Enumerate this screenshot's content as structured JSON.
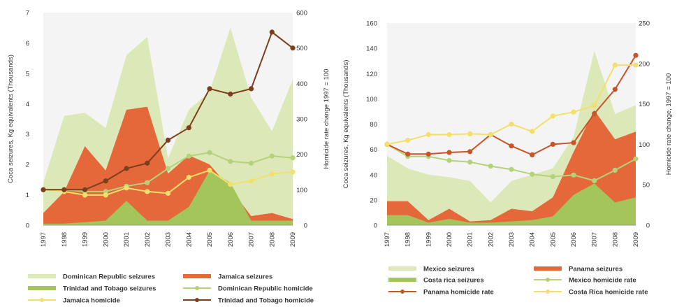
{
  "chart_data": [
    {
      "type": "area",
      "x": [
        "1997",
        "1998",
        "1999",
        "2000",
        "2001",
        "2002",
        "2003",
        "2004",
        "2005",
        "2006",
        "2007",
        "2008",
        "2009"
      ],
      "ylabel": "Coca seizures, Kg equivalents (Thousands)",
      "y2label": "Homicide rate change 1997 = 100",
      "ylim": [
        0,
        7
      ],
      "y2lim": [
        0,
        600
      ],
      "yticks": [
        0,
        1,
        2,
        3,
        4,
        5,
        6,
        7
      ],
      "y2ticks": [
        0,
        100,
        200,
        300,
        400,
        500,
        600
      ],
      "series": [
        {
          "name": "Dominican Republic seizures",
          "kind": "area",
          "axis": "left",
          "color": "#dde8b8",
          "values": [
            1.4,
            3.6,
            3.7,
            3.2,
            5.6,
            6.2,
            2.2,
            3.8,
            4.4,
            6.5,
            4.2,
            3.1,
            4.8
          ]
        },
        {
          "name": "Jamaica seizures",
          "kind": "area",
          "axis": "left",
          "color": "#e5683a",
          "values": [
            0.4,
            1.1,
            2.6,
            1.8,
            3.8,
            3.9,
            1.7,
            2.3,
            2.0,
            1.2,
            0.3,
            0.4,
            0.2
          ]
        },
        {
          "name": "Trinidad and Tobago seizures",
          "kind": "area",
          "axis": "left",
          "color": "#a4c45c",
          "values": [
            0.05,
            0.05,
            0.1,
            0.15,
            0.8,
            0.15,
            0.15,
            0.6,
            1.8,
            1.4,
            0.15,
            0.15,
            0.15
          ]
        },
        {
          "name": "Dominican Republic homicide",
          "kind": "line",
          "axis": "right",
          "color": "#b5d27a",
          "values": [
            100,
            100,
            95,
            95,
            110,
            120,
            160,
            195,
            205,
            180,
            175,
            195,
            190
          ]
        },
        {
          "name": "Jamaica homicide",
          "kind": "line",
          "axis": "right",
          "color": "#f3e06a",
          "values": [
            100,
            95,
            85,
            85,
            105,
            95,
            90,
            135,
            155,
            115,
            125,
            145,
            150
          ]
        },
        {
          "name": "Trinidad and Tobago homicide",
          "kind": "line",
          "axis": "right",
          "color": "#7b3f1d",
          "values": [
            100,
            100,
            100,
            125,
            160,
            175,
            240,
            275,
            385,
            370,
            385,
            545,
            500
          ]
        }
      ],
      "legend": [
        {
          "label": "Dominican Republic seizures",
          "kind": "band",
          "color": "#dde8b8"
        },
        {
          "label": "Jamaica seizures",
          "kind": "band",
          "color": "#e5683a"
        },
        {
          "label": "Trinidad and Tobago seizures",
          "kind": "band",
          "color": "#a4c45c"
        },
        {
          "label": "Dominican Republic homicide",
          "kind": "line",
          "color": "#b5d27a"
        },
        {
          "label": "Jamaica homicide",
          "kind": "line",
          "color": "#f3e06a"
        },
        {
          "label": "Trinidad and Tobago homicide",
          "kind": "line",
          "color": "#7b3f1d"
        }
      ]
    },
    {
      "type": "area",
      "x": [
        "1997",
        "1998",
        "1999",
        "2000",
        "2001",
        "2002",
        "2003",
        "2004",
        "2005",
        "2006",
        "2007",
        "2008",
        "2009"
      ],
      "ylabel": "Coca seizures, Kg equivalents (Thousands)",
      "y2label": "Homicide rate change, 1997 = 100",
      "ylim": [
        0,
        160
      ],
      "y2lim": [
        0,
        250
      ],
      "yticks": [
        0,
        20,
        40,
        60,
        80,
        100,
        120,
        140,
        160
      ],
      "y2ticks": [
        0,
        50,
        100,
        150,
        200,
        250
      ],
      "series": [
        {
          "name": "Mexico seizures",
          "kind": "area",
          "axis": "left",
          "color": "#dde8b8",
          "values": [
            55,
            45,
            40,
            38,
            35,
            18,
            35,
            40,
            45,
            70,
            138,
            88,
            95
          ]
        },
        {
          "name": "Panama seizures",
          "kind": "area",
          "axis": "left",
          "color": "#e5683a",
          "values": [
            19,
            19,
            4,
            13,
            3,
            4,
            13,
            11,
            22,
            58,
            91,
            68,
            74
          ]
        },
        {
          "name": "Costa rica seizures",
          "kind": "area",
          "axis": "left",
          "color": "#a4c45c",
          "values": [
            8,
            8,
            2,
            5,
            2,
            2,
            3,
            4,
            7,
            24,
            33,
            18,
            22
          ]
        },
        {
          "name": "Mexico homicide rate",
          "kind": "line",
          "axis": "right",
          "color": "#b5d27a",
          "values": [
            100,
            85,
            85,
            80,
            78,
            73,
            69,
            63,
            60,
            62,
            55,
            68,
            82
          ]
        },
        {
          "name": "Panama homicide rate",
          "kind": "line",
          "axis": "right",
          "color": "#c9542a",
          "values": [
            100,
            88,
            88,
            90,
            91,
            112,
            98,
            87,
            100,
            102,
            138,
            168,
            210
          ]
        },
        {
          "name": "Costa Rica homicide rate",
          "kind": "line",
          "axis": "right",
          "color": "#f3e06a",
          "values": [
            100,
            105,
            112,
            112,
            113,
            112,
            125,
            116,
            135,
            140,
            148,
            198,
            198
          ]
        }
      ],
      "legend": [
        {
          "label": "Mexico seizures",
          "kind": "band",
          "color": "#dde8b8"
        },
        {
          "label": "Panama seizures",
          "kind": "band",
          "color": "#e5683a"
        },
        {
          "label": "Costa rica seizures",
          "kind": "band",
          "color": "#a4c45c"
        },
        {
          "label": "Mexico homicide rate",
          "kind": "line",
          "color": "#b5d27a"
        },
        {
          "label": "Panama homicide rate",
          "kind": "line",
          "color": "#c9542a"
        },
        {
          "label": "Costa Rica homicide rate",
          "kind": "line",
          "color": "#f3e06a"
        }
      ]
    }
  ]
}
